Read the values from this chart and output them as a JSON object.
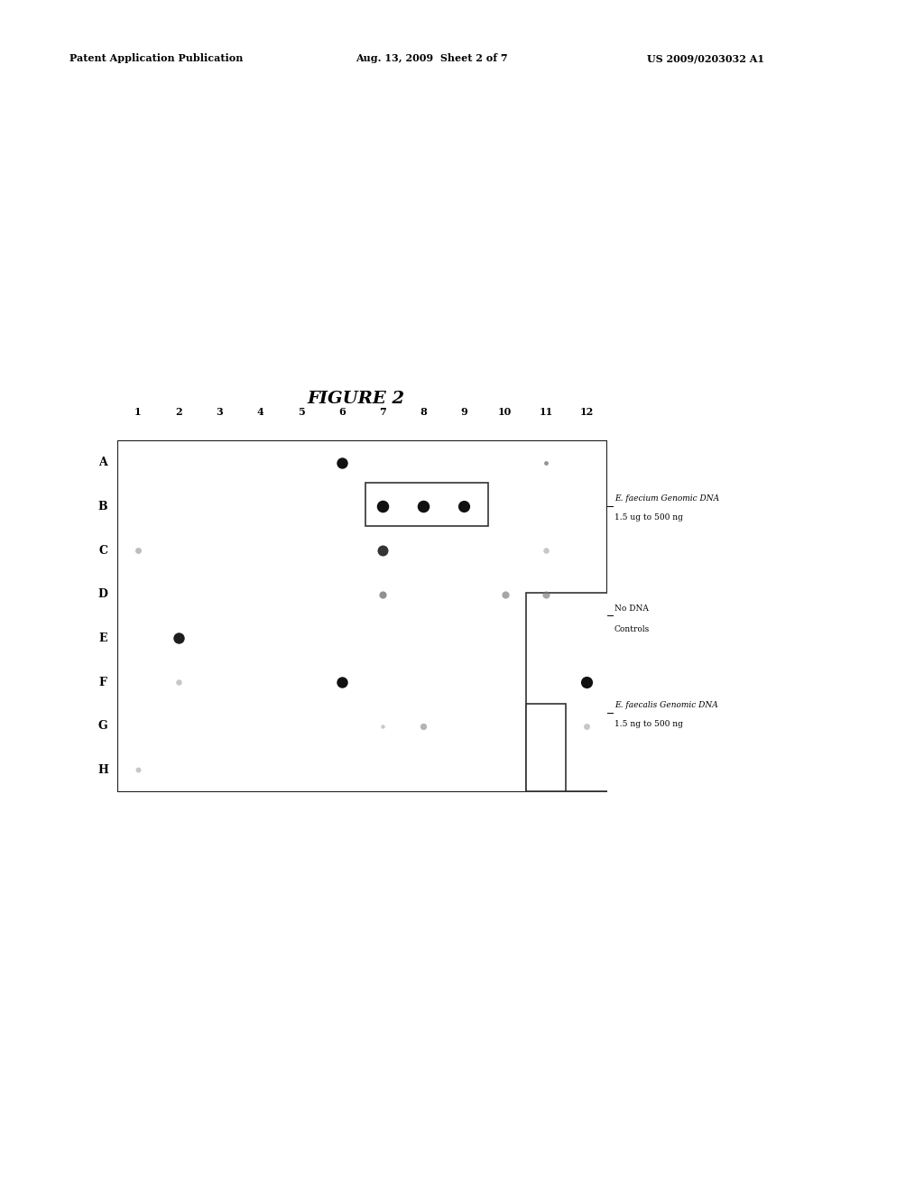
{
  "figure_title": "FIGURE 2",
  "header_left": "Patent Application Publication",
  "header_center": "Aug. 13, 2009  Sheet 2 of 7",
  "header_right": "US 2009/0203032 A1",
  "rows": [
    "A",
    "B",
    "C",
    "D",
    "E",
    "F",
    "G",
    "H"
  ],
  "cols": [
    1,
    2,
    3,
    4,
    5,
    6,
    7,
    8,
    9,
    10,
    11,
    12
  ],
  "dots": [
    {
      "row": "A",
      "col": 6,
      "size": 80,
      "color": "#111111",
      "alpha": 1.0
    },
    {
      "row": "A",
      "col": 11,
      "size": 12,
      "color": "#666666",
      "alpha": 0.7
    },
    {
      "row": "B",
      "col": 7,
      "size": 95,
      "color": "#111111",
      "alpha": 1.0
    },
    {
      "row": "B",
      "col": 8,
      "size": 95,
      "color": "#111111",
      "alpha": 1.0
    },
    {
      "row": "B",
      "col": 9,
      "size": 90,
      "color": "#111111",
      "alpha": 1.0
    },
    {
      "row": "C",
      "col": 1,
      "size": 25,
      "color": "#888888",
      "alpha": 0.55
    },
    {
      "row": "C",
      "col": 7,
      "size": 75,
      "color": "#222222",
      "alpha": 0.92
    },
    {
      "row": "C",
      "col": 11,
      "size": 22,
      "color": "#999999",
      "alpha": 0.55
    },
    {
      "row": "D",
      "col": 7,
      "size": 35,
      "color": "#555555",
      "alpha": 0.65
    },
    {
      "row": "D",
      "col": 10,
      "size": 35,
      "color": "#777777",
      "alpha": 0.65
    },
    {
      "row": "D",
      "col": 11,
      "size": 35,
      "color": "#777777",
      "alpha": 0.65
    },
    {
      "row": "E",
      "col": 2,
      "size": 80,
      "color": "#111111",
      "alpha": 0.95
    },
    {
      "row": "F",
      "col": 2,
      "size": 22,
      "color": "#999999",
      "alpha": 0.55
    },
    {
      "row": "F",
      "col": 6,
      "size": 80,
      "color": "#111111",
      "alpha": 1.0
    },
    {
      "row": "F",
      "col": 12,
      "size": 90,
      "color": "#111111",
      "alpha": 1.0
    },
    {
      "row": "G",
      "col": 7,
      "size": 10,
      "color": "#999999",
      "alpha": 0.55
    },
    {
      "row": "G",
      "col": 8,
      "size": 28,
      "color": "#777777",
      "alpha": 0.55
    },
    {
      "row": "G",
      "col": 12,
      "size": 25,
      "color": "#999999",
      "alpha": 0.55
    },
    {
      "row": "H",
      "col": 1,
      "size": 18,
      "color": "#999999",
      "alpha": 0.55
    }
  ],
  "label_faecium_line1": "E. faecium Genomic DNA",
  "label_faecium_line2": "1.5 ug to 500 ng",
  "label_nodna_line1": "No DNA",
  "label_nodna_line2": "Controls",
  "label_faecalis_line1": "E. faecalis Genomic DNA",
  "label_faecalis_line2": "1.5 ng to 500 ng",
  "background": "#ffffff"
}
